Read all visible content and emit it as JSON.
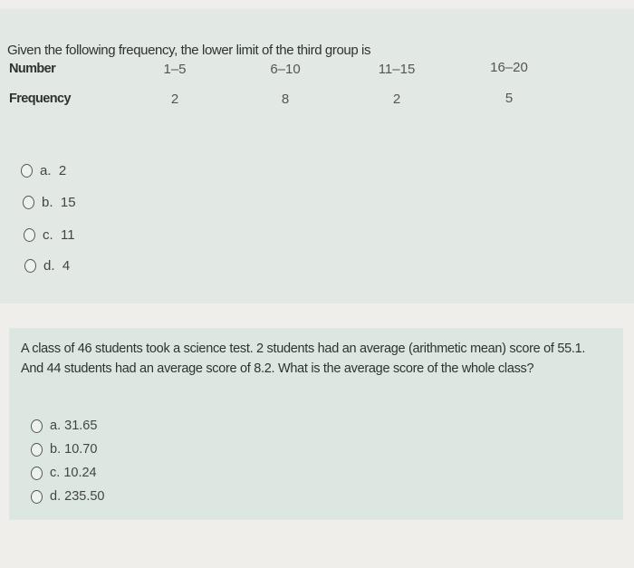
{
  "question1": {
    "text": "Given the following frequency, the lower limit of the third group is",
    "table": {
      "row_labels": [
        "Number",
        "Frequency"
      ],
      "groups": [
        "1–5",
        "6–10",
        "11–15",
        "16–20"
      ],
      "frequencies": [
        "2",
        "8",
        "2",
        "5"
      ]
    },
    "options": [
      {
        "letter": "a.",
        "value": "2"
      },
      {
        "letter": "b.",
        "value": "15"
      },
      {
        "letter": "c.",
        "value": "11"
      },
      {
        "letter": "d.",
        "value": "4"
      }
    ]
  },
  "question2": {
    "text": "A class of 46 students took a science test. 2 students had an average (arithmetic mean) score of 55.1. And  44 students had an average score of 8.2. What is the average score of the whole class?",
    "options": [
      {
        "letter": "a.",
        "value": "31.65"
      },
      {
        "letter": "b.",
        "value": "10.70"
      },
      {
        "letter": "c.",
        "value": "10.24"
      },
      {
        "letter": "d.",
        "value": "235.50"
      }
    ]
  }
}
